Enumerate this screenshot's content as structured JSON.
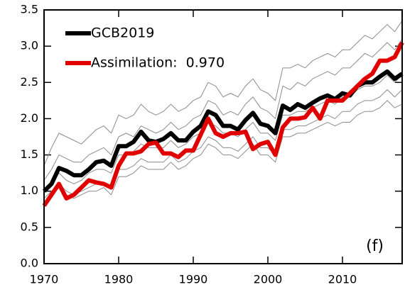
{
  "chart_data": {
    "type": "line",
    "panel_label": "(f)",
    "x": [
      1970,
      1971,
      1972,
      1973,
      1974,
      1975,
      1976,
      1977,
      1978,
      1979,
      1980,
      1981,
      1982,
      1983,
      1984,
      1985,
      1986,
      1987,
      1988,
      1989,
      1990,
      1991,
      1992,
      1993,
      1994,
      1995,
      1996,
      1997,
      1998,
      1999,
      2000,
      2001,
      2002,
      2003,
      2004,
      2005,
      2006,
      2007,
      2008,
      2009,
      2010,
      2011,
      2012,
      2013,
      2014,
      2015,
      2016,
      2017,
      2018
    ],
    "xlim": [
      1970,
      2018
    ],
    "xticks": [
      1970,
      1980,
      1990,
      2000,
      2010
    ],
    "ylim": [
      0,
      3.5
    ],
    "yticks": [
      {
        "value": 0,
        "label": "0.0"
      },
      {
        "value": 0.5,
        "label": "0.5"
      },
      {
        "value": 1,
        "label": "1.0"
      },
      {
        "value": 1.5,
        "label": "1.5"
      },
      {
        "value": 2,
        "label": "2.0"
      },
      {
        "value": 2.5,
        "label": "2.5"
      },
      {
        "value": 3,
        "label": "3.0"
      },
      {
        "value": 3.5,
        "label": "3.5"
      }
    ],
    "series": [
      {
        "color": "#8c8c8c",
        "width": 1,
        "values": [
          1.35,
          1.6,
          1.8,
          1.75,
          1.7,
          1.65,
          1.75,
          1.85,
          1.9,
          1.8,
          2.05,
          2.0,
          2.05,
          2.2,
          2.1,
          2.05,
          2.1,
          2.2,
          2.1,
          2.15,
          2.25,
          2.3,
          2.5,
          2.45,
          2.3,
          2.35,
          2.3,
          2.45,
          2.55,
          2.4,
          2.35,
          2.25,
          2.7,
          2.7,
          2.75,
          2.7,
          2.8,
          2.85,
          2.9,
          2.85,
          2.95,
          2.95,
          3.05,
          3.15,
          3.1,
          3.2,
          3.3,
          3.2,
          3.35
        ]
      },
      {
        "color": "#8c8c8c",
        "width": 1,
        "values": [
          1.15,
          1.3,
          1.5,
          1.45,
          1.4,
          1.4,
          1.5,
          1.55,
          1.6,
          1.5,
          1.75,
          1.8,
          1.75,
          1.9,
          1.85,
          1.8,
          1.85,
          1.95,
          1.85,
          1.9,
          2.0,
          2.05,
          2.25,
          2.2,
          2.05,
          2.1,
          2.05,
          2.2,
          2.3,
          2.15,
          2.1,
          2.0,
          2.45,
          2.4,
          2.5,
          2.45,
          2.55,
          2.6,
          2.65,
          2.6,
          2.7,
          2.7,
          2.8,
          2.9,
          2.85,
          2.95,
          3.05,
          2.95,
          3.1
        ]
      },
      {
        "color": "#8c8c8c",
        "width": 1,
        "values": [
          1.0,
          1.1,
          1.25,
          1.15,
          1.1,
          1.15,
          1.25,
          1.3,
          1.3,
          1.25,
          1.5,
          1.5,
          1.55,
          1.65,
          1.6,
          1.6,
          1.6,
          1.7,
          1.6,
          1.65,
          1.75,
          1.8,
          1.95,
          1.9,
          1.8,
          1.8,
          1.75,
          1.85,
          1.95,
          1.8,
          1.8,
          1.7,
          2.05,
          2.05,
          2.1,
          2.1,
          2.15,
          2.2,
          2.25,
          2.2,
          2.3,
          2.3,
          2.4,
          2.45,
          2.45,
          2.5,
          2.6,
          2.5,
          2.6
        ]
      },
      {
        "color": "#8c8c8c",
        "width": 1,
        "values": [
          0.9,
          1.0,
          1.1,
          1.0,
          0.95,
          1.0,
          1.05,
          1.1,
          1.1,
          1.05,
          1.3,
          1.3,
          1.35,
          1.45,
          1.4,
          1.4,
          1.4,
          1.5,
          1.4,
          1.45,
          1.55,
          1.6,
          1.75,
          1.7,
          1.6,
          1.6,
          1.55,
          1.65,
          1.75,
          1.6,
          1.6,
          1.5,
          1.85,
          1.85,
          1.9,
          1.9,
          1.95,
          2.0,
          2.05,
          2.0,
          2.1,
          2.1,
          2.2,
          2.25,
          2.25,
          2.3,
          2.4,
          2.3,
          2.4
        ]
      },
      {
        "color": "#8c8c8c",
        "width": 1,
        "values": [
          0.85,
          0.95,
          1.05,
          0.95,
          0.9,
          0.95,
          1.0,
          1.0,
          1.05,
          0.95,
          1.2,
          1.2,
          1.25,
          1.35,
          1.3,
          1.3,
          1.3,
          1.4,
          1.3,
          1.35,
          1.45,
          1.5,
          1.65,
          1.6,
          1.5,
          1.5,
          1.45,
          1.55,
          1.65,
          1.5,
          1.5,
          1.4,
          1.75,
          1.75,
          1.8,
          1.8,
          1.85,
          1.9,
          1.95,
          1.9,
          1.95,
          1.95,
          2.05,
          2.1,
          2.1,
          2.15,
          2.25,
          2.15,
          2.2
        ]
      },
      {
        "name": "GCB2019",
        "color": "#000000",
        "width": 6,
        "values": [
          1.0,
          1.1,
          1.32,
          1.28,
          1.22,
          1.22,
          1.3,
          1.4,
          1.42,
          1.35,
          1.62,
          1.62,
          1.68,
          1.82,
          1.7,
          1.68,
          1.72,
          1.8,
          1.7,
          1.7,
          1.82,
          1.9,
          2.1,
          2.05,
          1.9,
          1.9,
          1.85,
          1.98,
          2.08,
          1.93,
          1.9,
          1.8,
          2.18,
          2.12,
          2.2,
          2.15,
          2.22,
          2.28,
          2.32,
          2.27,
          2.35,
          2.32,
          2.45,
          2.5,
          2.5,
          2.58,
          2.65,
          2.55,
          2.62
        ]
      },
      {
        "name": "Assimilation:  0.970",
        "color": "#e00000",
        "width": 6,
        "values": [
          0.8,
          0.95,
          1.1,
          0.9,
          0.95,
          1.05,
          1.15,
          1.12,
          1.1,
          1.05,
          1.35,
          1.52,
          1.52,
          1.55,
          1.65,
          1.67,
          1.52,
          1.52,
          1.47,
          1.56,
          1.56,
          1.78,
          2.0,
          1.8,
          1.75,
          1.8,
          1.8,
          1.82,
          1.58,
          1.65,
          1.68,
          1.5,
          1.88,
          2.0,
          2.0,
          2.02,
          2.15,
          2.0,
          2.25,
          2.25,
          2.25,
          2.35,
          2.45,
          2.55,
          2.62,
          2.8,
          2.8,
          2.85,
          3.05
        ]
      }
    ]
  }
}
